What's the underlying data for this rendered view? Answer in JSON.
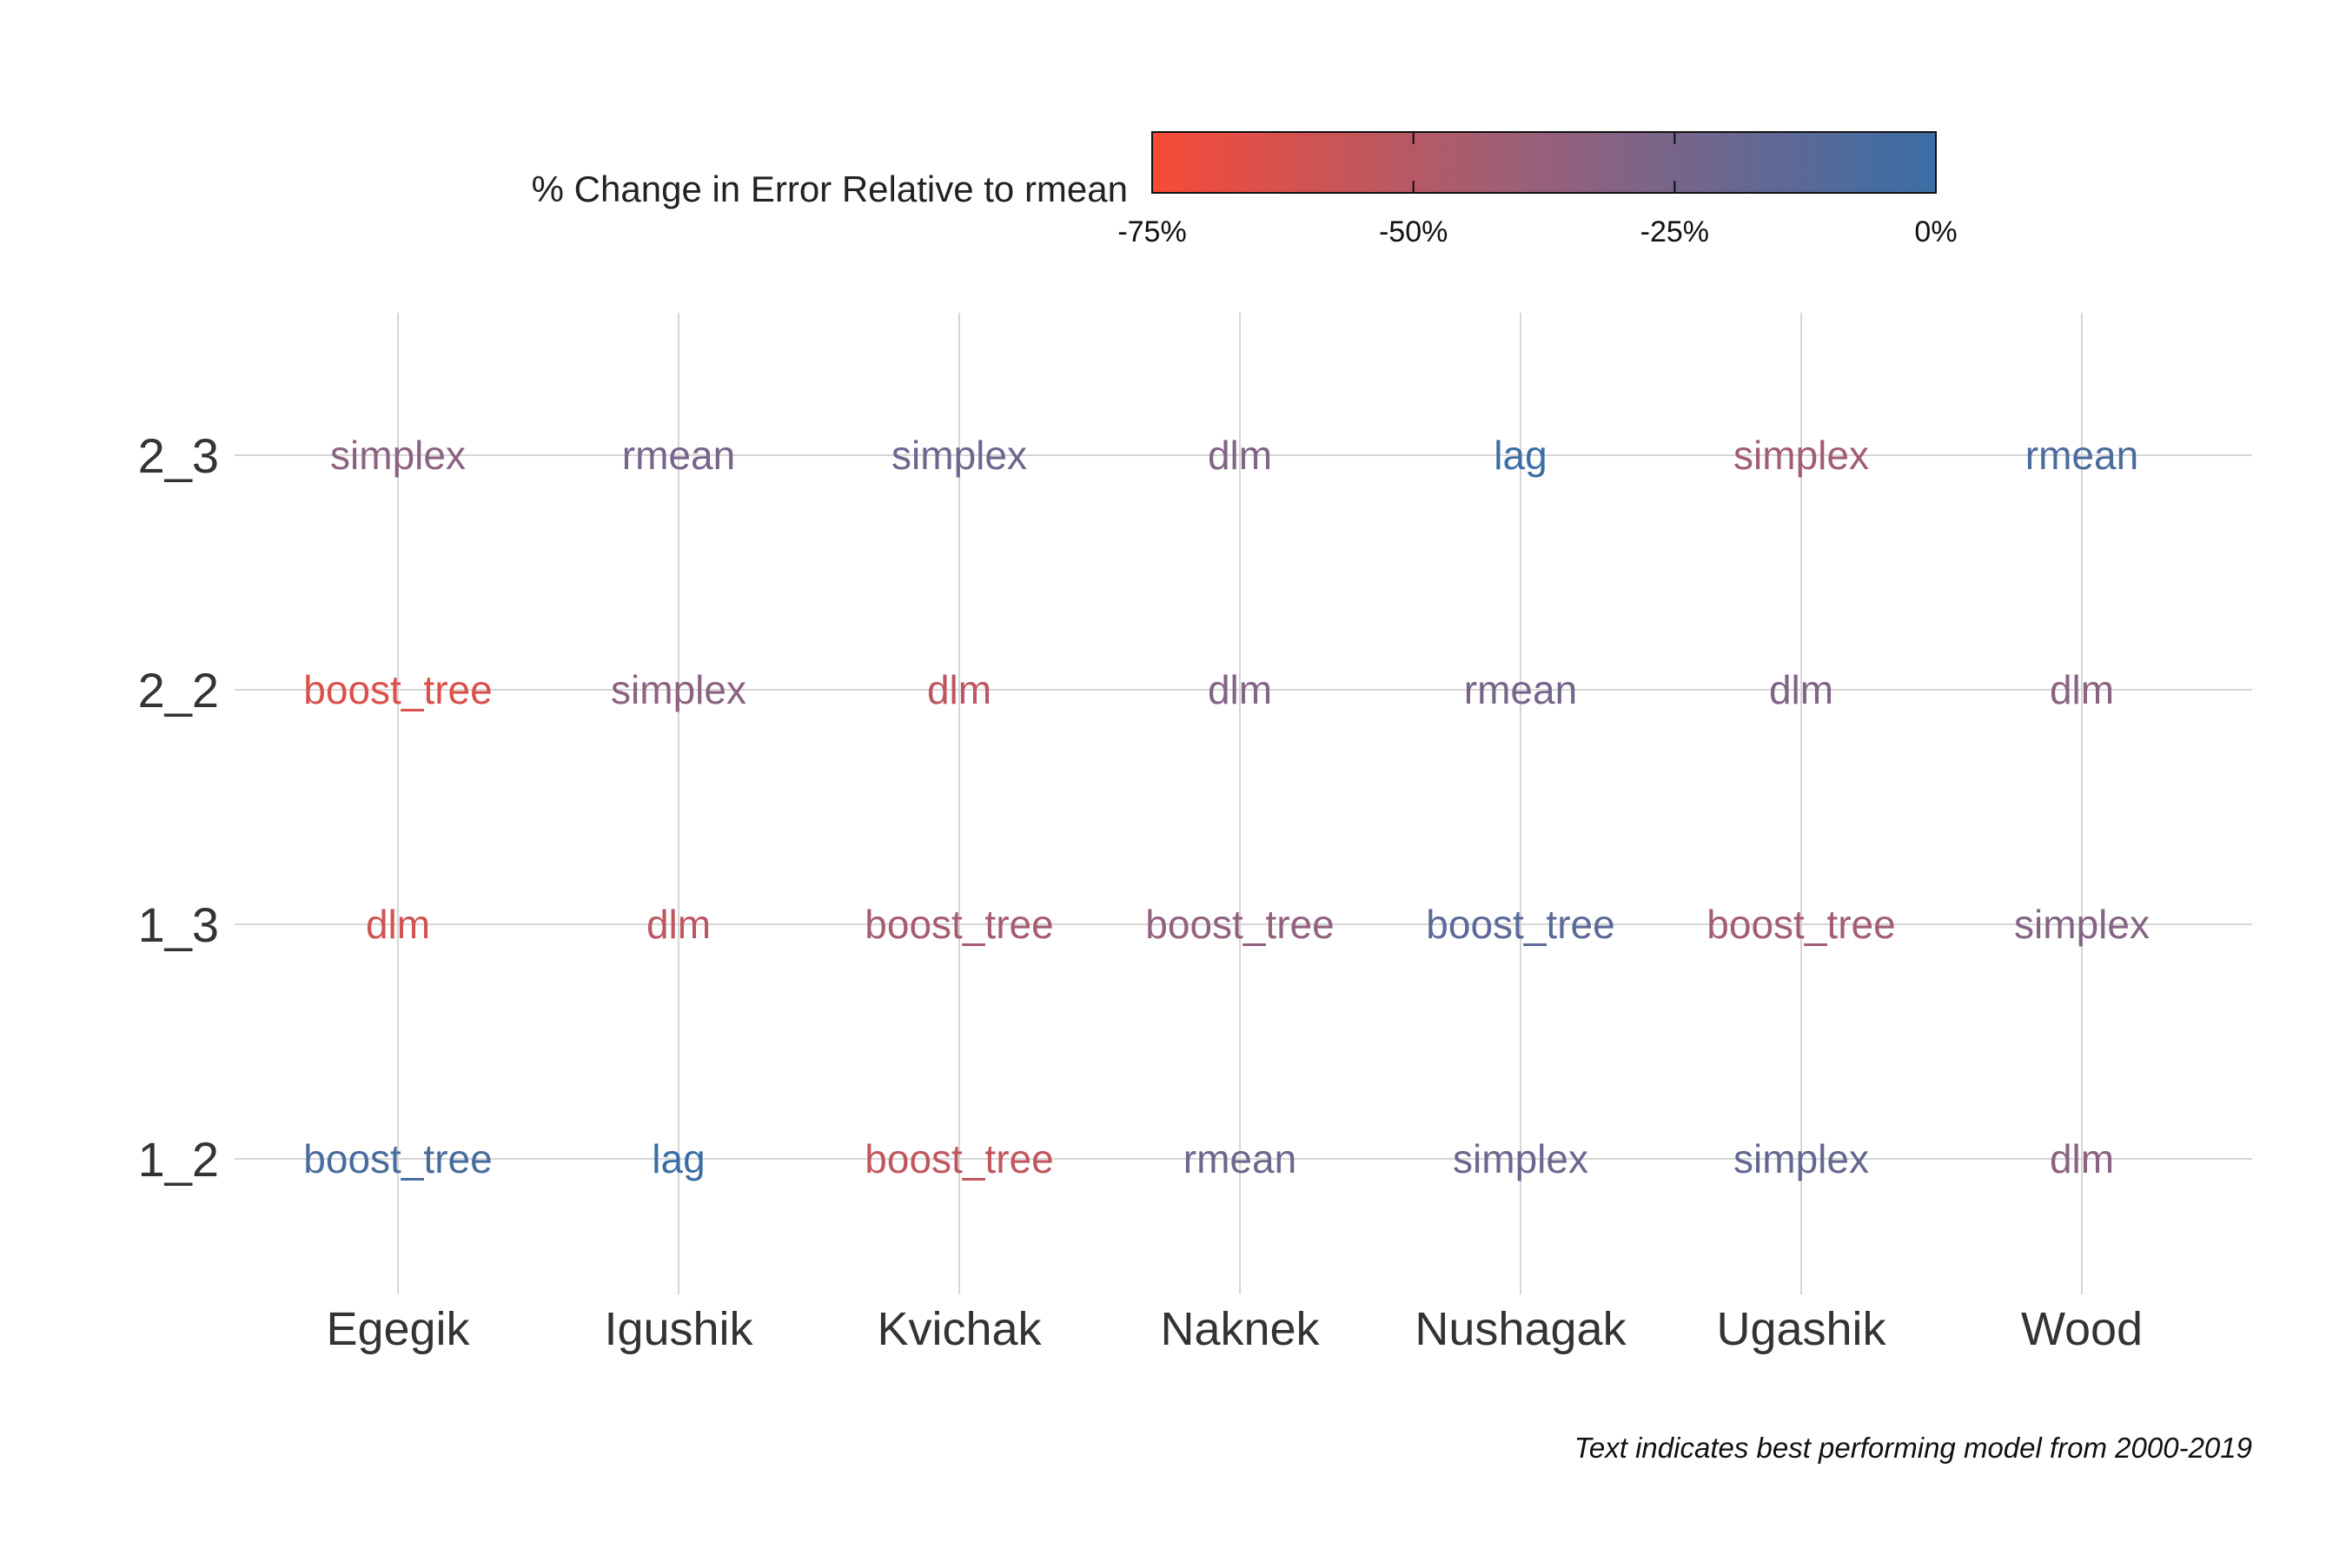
{
  "chart_data": {
    "type": "heatmap",
    "title": "",
    "xlabel": "",
    "ylabel": "",
    "x_categories": [
      "Egegik",
      "Igushik",
      "Kvichak",
      "Naknek",
      "Nushagak",
      "Ugashik",
      "Wood"
    ],
    "y_categories": [
      "1_2",
      "1_3",
      "2_2",
      "2_3"
    ],
    "legend": {
      "title": "% Change in Error Relative to rmean",
      "placement": "top",
      "range": [
        -75,
        0
      ],
      "ticks": [
        -75,
        -50,
        -25,
        0
      ],
      "tick_labels": [
        "-75%",
        "-50%",
        "-25%",
        "0%"
      ],
      "color_low": "#F84A37",
      "color_high": "#3A6EA5"
    },
    "caption": "Text indicates best performing model from 2000-2019",
    "grid": true,
    "cells": [
      {
        "x": "Egegik",
        "y": "2_3",
        "model": "simplex",
        "value": -33
      },
      {
        "x": "Igushik",
        "y": "2_3",
        "model": "rmean",
        "value": -25
      },
      {
        "x": "Kvichak",
        "y": "2_3",
        "model": "simplex",
        "value": -20
      },
      {
        "x": "Naknek",
        "y": "2_3",
        "model": "dlm",
        "value": -28
      },
      {
        "x": "Nushagak",
        "y": "2_3",
        "model": "lag",
        "value": 0
      },
      {
        "x": "Ugashik",
        "y": "2_3",
        "model": "simplex",
        "value": -42
      },
      {
        "x": "Wood",
        "y": "2_3",
        "model": "rmean",
        "value": -7
      },
      {
        "x": "Egegik",
        "y": "2_2",
        "model": "boost_tree",
        "value": -64
      },
      {
        "x": "Igushik",
        "y": "2_2",
        "model": "simplex",
        "value": -33
      },
      {
        "x": "Kvichak",
        "y": "2_2",
        "model": "dlm",
        "value": -52
      },
      {
        "x": "Naknek",
        "y": "2_2",
        "model": "dlm",
        "value": -30
      },
      {
        "x": "Nushagak",
        "y": "2_2",
        "model": "rmean",
        "value": -25
      },
      {
        "x": "Ugashik",
        "y": "2_2",
        "model": "dlm",
        "value": -28
      },
      {
        "x": "Wood",
        "y": "2_2",
        "model": "dlm",
        "value": -33
      },
      {
        "x": "Egegik",
        "y": "1_3",
        "model": "dlm",
        "value": -60
      },
      {
        "x": "Igushik",
        "y": "1_3",
        "model": "dlm",
        "value": -52
      },
      {
        "x": "Kvichak",
        "y": "1_3",
        "model": "boost_tree",
        "value": -44
      },
      {
        "x": "Naknek",
        "y": "1_3",
        "model": "boost_tree",
        "value": -36
      },
      {
        "x": "Nushagak",
        "y": "1_3",
        "model": "boost_tree",
        "value": -13
      },
      {
        "x": "Ugashik",
        "y": "1_3",
        "model": "boost_tree",
        "value": -42
      },
      {
        "x": "Wood",
        "y": "1_3",
        "model": "simplex",
        "value": -30
      },
      {
        "x": "Egegik",
        "y": "1_2",
        "model": "boost_tree",
        "value": -6
      },
      {
        "x": "Igushik",
        "y": "1_2",
        "model": "lag",
        "value": 0
      },
      {
        "x": "Kvichak",
        "y": "1_2",
        "model": "boost_tree",
        "value": -54
      },
      {
        "x": "Naknek",
        "y": "1_2",
        "model": "rmean",
        "value": -22
      },
      {
        "x": "Nushagak",
        "y": "1_2",
        "model": "simplex",
        "value": -20
      },
      {
        "x": "Ugashik",
        "y": "1_2",
        "model": "simplex",
        "value": -18
      },
      {
        "x": "Wood",
        "y": "1_2",
        "model": "dlm",
        "value": -33
      }
    ]
  }
}
